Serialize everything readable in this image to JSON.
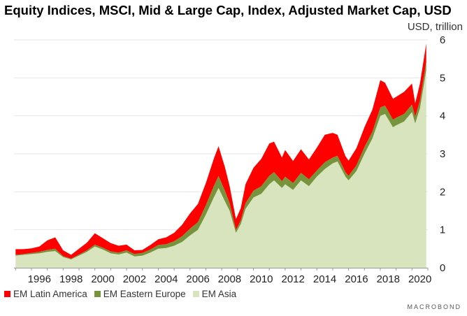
{
  "title": "Equity Indices, MSCI, Mid & Large Cap, Index, Adjusted Market Cap, USD",
  "unit_label": "USD, trillion",
  "brand": "MACROBOND",
  "chart_data": {
    "type": "area",
    "stacked": true,
    "title": "Equity Indices, MSCI, Mid & Large Cap, Index, Adjusted Market Cap, USD",
    "ylabel": "USD, trillion",
    "ylim": [
      0,
      6
    ],
    "xlim": [
      1994.9,
      2021.0
    ],
    "yticks": [
      0,
      1,
      2,
      3,
      4,
      5,
      6
    ],
    "xticks": [
      1996,
      1998,
      2000,
      2002,
      2004,
      2006,
      2008,
      2010,
      2012,
      2014,
      2016,
      2018,
      2020
    ],
    "grid": true,
    "legend_position": "bottom-left",
    "x": [
      1995.0,
      1995.5,
      1996.0,
      1996.5,
      1997.0,
      1997.5,
      1998.0,
      1998.5,
      1999.0,
      1999.5,
      2000.0,
      2000.5,
      2001.0,
      2001.5,
      2002.0,
      2002.5,
      2003.0,
      2003.5,
      2004.0,
      2004.5,
      2005.0,
      2005.5,
      2006.0,
      2006.5,
      2007.0,
      2007.5,
      2007.8,
      2008.2,
      2008.5,
      2008.9,
      2009.2,
      2009.5,
      2010.0,
      2010.5,
      2011.0,
      2011.3,
      2011.8,
      2012.0,
      2012.5,
      2013.0,
      2013.5,
      2014.0,
      2014.5,
      2015.0,
      2015.3,
      2015.8,
      2016.0,
      2016.5,
      2017.0,
      2017.5,
      2018.0,
      2018.3,
      2018.8,
      2019.0,
      2019.5,
      2020.0,
      2020.2,
      2020.5,
      2020.9
    ],
    "series": [
      {
        "name": "EM Asia",
        "color": "#d7e4bd",
        "values": [
          0.32,
          0.34,
          0.36,
          0.38,
          0.42,
          0.44,
          0.28,
          0.22,
          0.32,
          0.42,
          0.56,
          0.48,
          0.38,
          0.35,
          0.4,
          0.3,
          0.32,
          0.4,
          0.5,
          0.52,
          0.58,
          0.68,
          0.85,
          1.0,
          1.4,
          1.85,
          2.1,
          1.75,
          1.5,
          0.92,
          1.15,
          1.55,
          1.85,
          1.95,
          2.2,
          2.3,
          2.1,
          2.2,
          2.05,
          2.3,
          2.15,
          2.4,
          2.6,
          2.75,
          2.8,
          2.4,
          2.3,
          2.55,
          3.0,
          3.4,
          4.0,
          4.05,
          3.7,
          3.75,
          3.85,
          4.1,
          3.8,
          4.2,
          5.2
        ]
      },
      {
        "name": "EM Eastern Europe",
        "color": "#77933c",
        "values": [
          0.02,
          0.02,
          0.03,
          0.04,
          0.05,
          0.06,
          0.03,
          0.02,
          0.03,
          0.04,
          0.05,
          0.05,
          0.05,
          0.05,
          0.06,
          0.06,
          0.07,
          0.08,
          0.1,
          0.1,
          0.12,
          0.15,
          0.18,
          0.2,
          0.25,
          0.3,
          0.32,
          0.28,
          0.2,
          0.08,
          0.1,
          0.15,
          0.18,
          0.2,
          0.22,
          0.22,
          0.18,
          0.2,
          0.18,
          0.2,
          0.18,
          0.16,
          0.18,
          0.15,
          0.15,
          0.12,
          0.12,
          0.15,
          0.18,
          0.18,
          0.22,
          0.22,
          0.2,
          0.2,
          0.2,
          0.2,
          0.18,
          0.2,
          0.22
        ]
      },
      {
        "name": "EM Latin America",
        "color": "#ff0000",
        "values": [
          0.15,
          0.13,
          0.12,
          0.14,
          0.25,
          0.3,
          0.15,
          0.1,
          0.15,
          0.2,
          0.3,
          0.25,
          0.22,
          0.18,
          0.15,
          0.1,
          0.08,
          0.12,
          0.15,
          0.18,
          0.22,
          0.3,
          0.4,
          0.48,
          0.58,
          0.72,
          0.78,
          0.62,
          0.45,
          0.28,
          0.32,
          0.5,
          0.6,
          0.72,
          0.85,
          0.8,
          0.62,
          0.7,
          0.58,
          0.62,
          0.52,
          0.6,
          0.72,
          0.65,
          0.55,
          0.42,
          0.4,
          0.45,
          0.52,
          0.58,
          0.72,
          0.6,
          0.55,
          0.55,
          0.58,
          0.55,
          0.35,
          0.45,
          0.48
        ]
      }
    ]
  }
}
